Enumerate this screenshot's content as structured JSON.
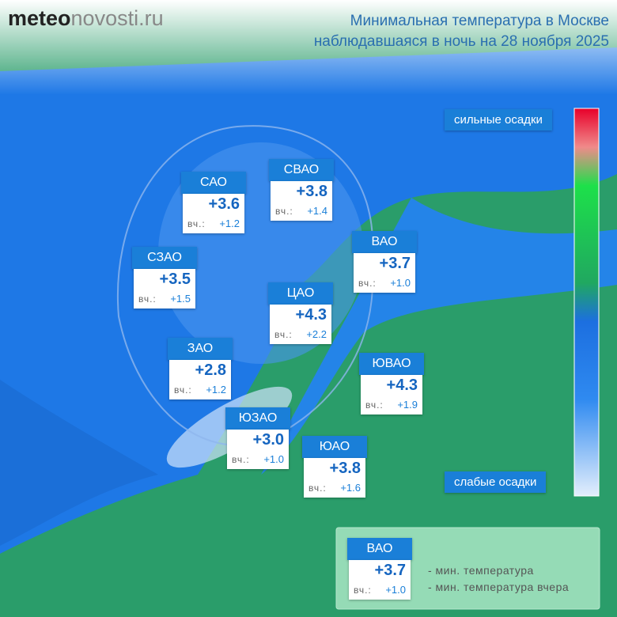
{
  "logo": {
    "bold": "meteo",
    "rest": "novosti.ru"
  },
  "title": {
    "line1": "Минимальная температура в Москве",
    "line2": "наблюдавшаяся в ночь на 28 ноября 2025"
  },
  "scale": {
    "top": "сильные осадки",
    "bottom": "слабые осадки"
  },
  "yesterday_prefix": "вч.:",
  "districts": [
    {
      "name": "САО",
      "temp": "+3.6",
      "prev": "+1.2"
    },
    {
      "name": "СВАО",
      "temp": "+3.8",
      "prev": "+1.4"
    },
    {
      "name": "ВАО",
      "temp": "+3.7",
      "prev": "+1.0"
    },
    {
      "name": "СЗАО",
      "temp": "+3.5",
      "prev": "+1.5"
    },
    {
      "name": "ЦАО",
      "temp": "+4.3",
      "prev": "+2.2"
    },
    {
      "name": "ЗАО",
      "temp": "+2.8",
      "prev": "+1.2"
    },
    {
      "name": "ЮВАО",
      "temp": "+4.3",
      "prev": "+1.9"
    },
    {
      "name": "ЮЗАО",
      "temp": "+3.0",
      "prev": "+1.0"
    },
    {
      "name": "ЮАО",
      "temp": "+3.8",
      "prev": "+1.6"
    }
  ],
  "legend": {
    "name": "ВАО",
    "temp": "+3.7",
    "prev": "+1.0",
    "temp_note": "- мин. температура",
    "prev_note": "- мин. температура вчера"
  }
}
